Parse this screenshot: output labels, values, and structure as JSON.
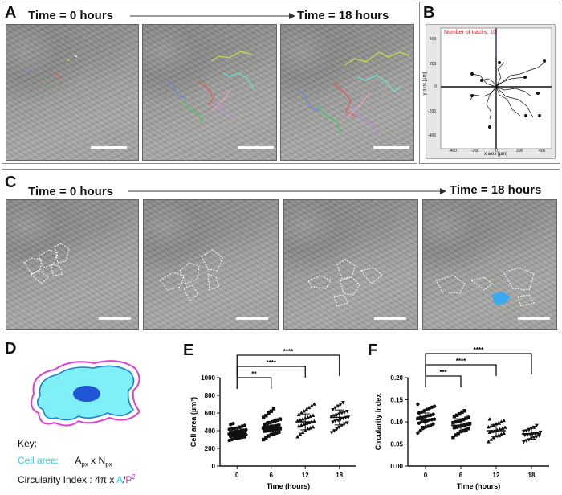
{
  "panels": {
    "A": {
      "letter": "A",
      "time_start": "Time = 0 hours",
      "time_end": "Time = 18 hours"
    },
    "B": {
      "letter": "B",
      "plot_title": "Number of tracks: 10",
      "x_axis_label": "x axis [µm]",
      "y_axis_label": "y axis [µm]",
      "x_ticks": [
        "-400",
        "-200",
        "0",
        "200",
        "400"
      ],
      "y_ticks": [
        "400",
        "200",
        "0",
        "-200",
        "-400"
      ]
    },
    "C": {
      "letter": "C",
      "time_start": "Time = 0 hours",
      "time_end": "Time = 18 hours"
    },
    "D": {
      "letter": "D",
      "key_label": "Key:",
      "cell_area_label": "Cell area:",
      "cell_area_formula": "A",
      "cell_area_sub1": "px",
      "cell_area_x": " x N",
      "cell_area_sub2": "px",
      "circ_label": "Circularity Index : 4π x ",
      "circ_A": "A",
      "circ_slash": "/",
      "circ_P": "P",
      "circ_sup": "2",
      "colors": {
        "cell_fill": "#7ff0f7",
        "nucleus": "#1f55d6",
        "perimeter": "#e040d0",
        "cell_text": "#22d3e6",
        "p_text": "#e020c8"
      }
    },
    "E": {
      "letter": "E"
    },
    "F": {
      "letter": "F"
    }
  },
  "chart_data": [
    {
      "type": "scatter",
      "panel": "E",
      "categories": [
        "0",
        "6",
        "12",
        "18"
      ],
      "xlabel": "Time (hours)",
      "ylabel": "Cell area (µm²)",
      "ylim": [
        0,
        1000
      ],
      "yticks": [
        "0",
        "200",
        "400",
        "600",
        "800",
        "1000"
      ],
      "markers": [
        "circle",
        "square",
        "triangle-up",
        "triangle-down"
      ],
      "means": [
        370,
        430,
        500,
        550
      ],
      "sd": [
        55,
        75,
        90,
        85
      ],
      "points": [
        [
          290,
          300,
          310,
          315,
          320,
          325,
          330,
          335,
          340,
          340,
          345,
          350,
          350,
          355,
          360,
          360,
          365,
          370,
          370,
          375,
          380,
          380,
          385,
          390,
          395,
          400,
          405,
          410,
          415,
          420,
          425,
          430,
          440,
          450,
          460,
          470,
          480
        ],
        [
          300,
          320,
          340,
          355,
          365,
          375,
          385,
          395,
          400,
          405,
          410,
          415,
          420,
          425,
          430,
          435,
          440,
          445,
          450,
          455,
          460,
          470,
          480,
          490,
          500,
          510,
          520,
          530,
          550,
          570,
          600,
          620,
          650
        ],
        [
          330,
          360,
          380,
          400,
          420,
          430,
          440,
          450,
          460,
          470,
          480,
          490,
          500,
          505,
          510,
          520,
          530,
          540,
          550,
          560,
          570,
          580,
          600,
          620,
          640,
          660,
          680,
          700
        ],
        [
          380,
          400,
          420,
          440,
          460,
          480,
          490,
          500,
          510,
          520,
          530,
          540,
          550,
          555,
          560,
          570,
          580,
          590,
          600,
          610,
          620,
          640,
          660,
          680,
          700,
          720
        ]
      ],
      "comparisons": [
        {
          "from": "0",
          "to": "6",
          "label": "**"
        },
        {
          "from": "0",
          "to": "12",
          "label": "****"
        },
        {
          "from": "0",
          "to": "18",
          "label": "****"
        }
      ]
    },
    {
      "type": "scatter",
      "panel": "F",
      "categories": [
        "0",
        "6",
        "12",
        "18"
      ],
      "xlabel": "Time (hours)",
      "ylabel": "Circularity Index",
      "ylim": [
        0,
        0.2
      ],
      "yticks": [
        "0.00",
        "0.05",
        "0.10",
        "0.15",
        "0.20"
      ],
      "markers": [
        "circle",
        "square",
        "triangle-up",
        "triangle-down"
      ],
      "means": [
        0.105,
        0.092,
        0.08,
        0.073
      ],
      "sd": [
        0.015,
        0.015,
        0.014,
        0.012
      ],
      "points": [
        [
          0.075,
          0.08,
          0.085,
          0.088,
          0.09,
          0.092,
          0.095,
          0.097,
          0.1,
          0.1,
          0.102,
          0.104,
          0.105,
          0.106,
          0.108,
          0.11,
          0.11,
          0.112,
          0.114,
          0.115,
          0.117,
          0.12,
          0.122,
          0.125,
          0.128,
          0.13,
          0.133,
          0.135,
          0.14
        ],
        [
          0.065,
          0.07,
          0.074,
          0.078,
          0.08,
          0.082,
          0.085,
          0.087,
          0.088,
          0.09,
          0.091,
          0.093,
          0.095,
          0.096,
          0.098,
          0.1,
          0.101,
          0.103,
          0.105,
          0.108,
          0.11,
          0.112,
          0.115,
          0.118,
          0.122,
          0.125
        ],
        [
          0.055,
          0.06,
          0.064,
          0.068,
          0.07,
          0.072,
          0.074,
          0.076,
          0.078,
          0.08,
          0.081,
          0.083,
          0.085,
          0.087,
          0.088,
          0.09,
          0.092,
          0.095,
          0.098,
          0.1,
          0.103,
          0.106
        ],
        [
          0.055,
          0.058,
          0.06,
          0.063,
          0.065,
          0.067,
          0.069,
          0.07,
          0.071,
          0.072,
          0.073,
          0.074,
          0.075,
          0.077,
          0.079,
          0.08,
          0.082,
          0.085,
          0.088,
          0.092
        ]
      ],
      "comparisons": [
        {
          "from": "0",
          "to": "6",
          "label": "***"
        },
        {
          "from": "0",
          "to": "12",
          "label": "****"
        },
        {
          "from": "0",
          "to": "18",
          "label": "****"
        }
      ]
    }
  ]
}
